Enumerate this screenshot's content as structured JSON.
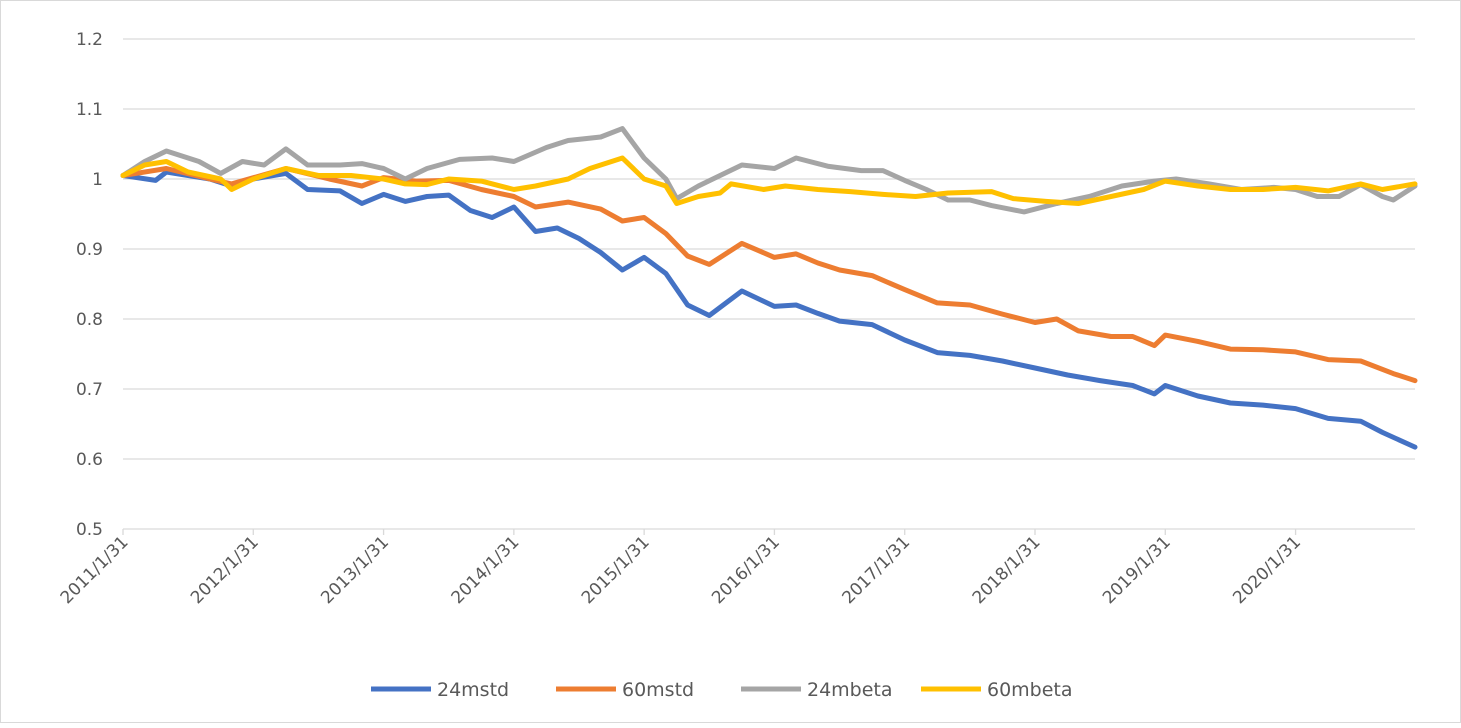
{
  "chart_data": {
    "type": "line",
    "title": "",
    "xlabel": "",
    "ylabel": "",
    "ylim": [
      0.5,
      1.2
    ],
    "yticks": [
      "0.5",
      "0.6",
      "0.7",
      "0.8",
      "0.9",
      "1",
      "1.1",
      "1.2"
    ],
    "xticks": [
      "2011/1/31",
      "2012/1/31",
      "2013/1/31",
      "2014/1/31",
      "2015/1/31",
      "2016/1/31",
      "2017/1/31",
      "2018/1/31",
      "2019/1/31",
      "2020/1/31"
    ],
    "xrange": [
      "2011-01",
      "2020-12"
    ],
    "grid": "horizontal",
    "legend": "bottom",
    "series": [
      {
        "name": "24mstd",
        "color": "#4472C4",
        "points": [
          [
            "2011-01",
            1.005
          ],
          [
            "2011-04",
            0.998
          ],
          [
            "2011-05",
            1.01
          ],
          [
            "2011-09",
            1.0
          ],
          [
            "2011-11",
            0.99
          ],
          [
            "2012-01",
            1.0
          ],
          [
            "2012-04",
            1.008
          ],
          [
            "2012-06",
            0.985
          ],
          [
            "2012-09",
            0.983
          ],
          [
            "2012-11",
            0.965
          ],
          [
            "2013-01",
            0.978
          ],
          [
            "2013-03",
            0.968
          ],
          [
            "2013-05",
            0.975
          ],
          [
            "2013-07",
            0.977
          ],
          [
            "2013-09",
            0.955
          ],
          [
            "2013-11",
            0.945
          ],
          [
            "2014-01",
            0.96
          ],
          [
            "2014-03",
            0.925
          ],
          [
            "2014-05",
            0.93
          ],
          [
            "2014-07",
            0.915
          ],
          [
            "2014-09",
            0.895
          ],
          [
            "2014-11",
            0.87
          ],
          [
            "2015-01",
            0.888
          ],
          [
            "2015-03",
            0.865
          ],
          [
            "2015-05",
            0.82
          ],
          [
            "2015-07",
            0.805
          ],
          [
            "2015-10",
            0.84
          ],
          [
            "2016-01",
            0.818
          ],
          [
            "2016-03",
            0.82
          ],
          [
            "2016-05",
            0.808
          ],
          [
            "2016-07",
            0.797
          ],
          [
            "2016-10",
            0.792
          ],
          [
            "2017-01",
            0.77
          ],
          [
            "2017-04",
            0.752
          ],
          [
            "2017-07",
            0.748
          ],
          [
            "2017-10",
            0.74
          ],
          [
            "2018-01",
            0.73
          ],
          [
            "2018-04",
            0.72
          ],
          [
            "2018-07",
            0.712
          ],
          [
            "2018-10",
            0.705
          ],
          [
            "2018-12",
            0.693
          ],
          [
            "2019-01",
            0.705
          ],
          [
            "2019-04",
            0.69
          ],
          [
            "2019-07",
            0.68
          ],
          [
            "2019-10",
            0.677
          ],
          [
            "2020-01",
            0.672
          ],
          [
            "2020-04",
            0.658
          ],
          [
            "2020-07",
            0.654
          ],
          [
            "2020-09",
            0.638
          ],
          [
            "2020-12",
            0.617
          ]
        ]
      },
      {
        "name": "60mstd",
        "color": "#ED7D31",
        "points": [
          [
            "2011-01",
            1.005
          ],
          [
            "2011-05",
            1.015
          ],
          [
            "2011-09",
            1.0
          ],
          [
            "2011-11",
            0.993
          ],
          [
            "2012-04",
            1.015
          ],
          [
            "2012-08",
            1.0
          ],
          [
            "2012-11",
            0.99
          ],
          [
            "2013-01",
            1.002
          ],
          [
            "2013-04",
            0.997
          ],
          [
            "2013-07",
            0.998
          ],
          [
            "2013-10",
            0.985
          ],
          [
            "2014-01",
            0.975
          ],
          [
            "2014-03",
            0.96
          ],
          [
            "2014-06",
            0.967
          ],
          [
            "2014-09",
            0.957
          ],
          [
            "2014-11",
            0.94
          ],
          [
            "2015-01",
            0.945
          ],
          [
            "2015-03",
            0.922
          ],
          [
            "2015-05",
            0.89
          ],
          [
            "2015-07",
            0.878
          ],
          [
            "2015-10",
            0.908
          ],
          [
            "2016-01",
            0.888
          ],
          [
            "2016-03",
            0.893
          ],
          [
            "2016-05",
            0.88
          ],
          [
            "2016-07",
            0.87
          ],
          [
            "2016-10",
            0.862
          ],
          [
            "2017-01",
            0.842
          ],
          [
            "2017-04",
            0.823
          ],
          [
            "2017-07",
            0.82
          ],
          [
            "2017-10",
            0.807
          ],
          [
            "2018-01",
            0.795
          ],
          [
            "2018-03",
            0.8
          ],
          [
            "2018-05",
            0.783
          ],
          [
            "2018-08",
            0.775
          ],
          [
            "2018-10",
            0.775
          ],
          [
            "2018-12",
            0.762
          ],
          [
            "2019-01",
            0.777
          ],
          [
            "2019-04",
            0.768
          ],
          [
            "2019-07",
            0.757
          ],
          [
            "2019-10",
            0.756
          ],
          [
            "2020-01",
            0.753
          ],
          [
            "2020-04",
            0.742
          ],
          [
            "2020-07",
            0.74
          ],
          [
            "2020-10",
            0.722
          ],
          [
            "2020-12",
            0.712
          ]
        ]
      },
      {
        "name": "24mbeta",
        "color": "#A5A5A5",
        "points": [
          [
            "2011-01",
            1.005
          ],
          [
            "2011-03",
            1.025
          ],
          [
            "2011-05",
            1.04
          ],
          [
            "2011-08",
            1.025
          ],
          [
            "2011-10",
            1.008
          ],
          [
            "2011-12",
            1.025
          ],
          [
            "2012-02",
            1.02
          ],
          [
            "2012-04",
            1.043
          ],
          [
            "2012-06",
            1.02
          ],
          [
            "2012-09",
            1.02
          ],
          [
            "2012-11",
            1.022
          ],
          [
            "2013-01",
            1.015
          ],
          [
            "2013-03",
            1.0
          ],
          [
            "2013-05",
            1.015
          ],
          [
            "2013-08",
            1.028
          ],
          [
            "2013-11",
            1.03
          ],
          [
            "2014-01",
            1.025
          ],
          [
            "2014-04",
            1.045
          ],
          [
            "2014-06",
            1.055
          ],
          [
            "2014-09",
            1.06
          ],
          [
            "2014-11",
            1.072
          ],
          [
            "2015-01",
            1.03
          ],
          [
            "2015-03",
            1.0
          ],
          [
            "2015-04",
            0.972
          ],
          [
            "2015-06",
            0.99
          ],
          [
            "2015-08",
            1.005
          ],
          [
            "2015-10",
            1.02
          ],
          [
            "2016-01",
            1.015
          ],
          [
            "2016-03",
            1.03
          ],
          [
            "2016-06",
            1.018
          ],
          [
            "2016-09",
            1.012
          ],
          [
            "2016-11",
            1.012
          ],
          [
            "2017-01",
            0.998
          ],
          [
            "2017-03",
            0.985
          ],
          [
            "2017-05",
            0.97
          ],
          [
            "2017-07",
            0.97
          ],
          [
            "2017-09",
            0.962
          ],
          [
            "2017-12",
            0.953
          ],
          [
            "2018-03",
            0.965
          ],
          [
            "2018-06",
            0.975
          ],
          [
            "2018-09",
            0.99
          ],
          [
            "2018-12",
            0.997
          ],
          [
            "2019-02",
            1.0
          ],
          [
            "2019-05",
            0.993
          ],
          [
            "2019-08",
            0.985
          ],
          [
            "2019-11",
            0.988
          ],
          [
            "2020-01",
            0.985
          ],
          [
            "2020-03",
            0.975
          ],
          [
            "2020-05",
            0.975
          ],
          [
            "2020-07",
            0.992
          ],
          [
            "2020-09",
            0.975
          ],
          [
            "2020-10",
            0.97
          ],
          [
            "2020-12",
            0.99
          ]
        ]
      },
      {
        "name": "60mbeta",
        "color": "#FFC000",
        "points": [
          [
            "2011-01",
            1.005
          ],
          [
            "2011-03",
            1.02
          ],
          [
            "2011-05",
            1.025
          ],
          [
            "2011-07",
            1.01
          ],
          [
            "2011-10",
            1.0
          ],
          [
            "2011-11",
            0.985
          ],
          [
            "2012-01",
            1.0
          ],
          [
            "2012-04",
            1.015
          ],
          [
            "2012-07",
            1.005
          ],
          [
            "2012-10",
            1.005
          ],
          [
            "2013-01",
            1.0
          ],
          [
            "2013-03",
            0.993
          ],
          [
            "2013-05",
            0.992
          ],
          [
            "2013-07",
            1.0
          ],
          [
            "2013-10",
            0.997
          ],
          [
            "2014-01",
            0.985
          ],
          [
            "2014-03",
            0.99
          ],
          [
            "2014-06",
            1.0
          ],
          [
            "2014-08",
            1.015
          ],
          [
            "2014-10",
            1.025
          ],
          [
            "2014-11",
            1.03
          ],
          [
            "2015-01",
            1.0
          ],
          [
            "2015-03",
            0.99
          ],
          [
            "2015-04",
            0.965
          ],
          [
            "2015-06",
            0.975
          ],
          [
            "2015-08",
            0.98
          ],
          [
            "2015-09",
            0.993
          ],
          [
            "2015-12",
            0.985
          ],
          [
            "2016-02",
            0.99
          ],
          [
            "2016-05",
            0.985
          ],
          [
            "2016-08",
            0.982
          ],
          [
            "2016-11",
            0.978
          ],
          [
            "2017-02",
            0.975
          ],
          [
            "2017-05",
            0.98
          ],
          [
            "2017-09",
            0.982
          ],
          [
            "2017-11",
            0.972
          ],
          [
            "2018-02",
            0.968
          ],
          [
            "2018-05",
            0.965
          ],
          [
            "2018-08",
            0.975
          ],
          [
            "2018-11",
            0.985
          ],
          [
            "2019-01",
            0.997
          ],
          [
            "2019-04",
            0.99
          ],
          [
            "2019-07",
            0.985
          ],
          [
            "2019-10",
            0.985
          ],
          [
            "2020-01",
            0.988
          ],
          [
            "2020-04",
            0.983
          ],
          [
            "2020-07",
            0.993
          ],
          [
            "2020-09",
            0.985
          ],
          [
            "2020-12",
            0.993
          ]
        ]
      }
    ]
  }
}
